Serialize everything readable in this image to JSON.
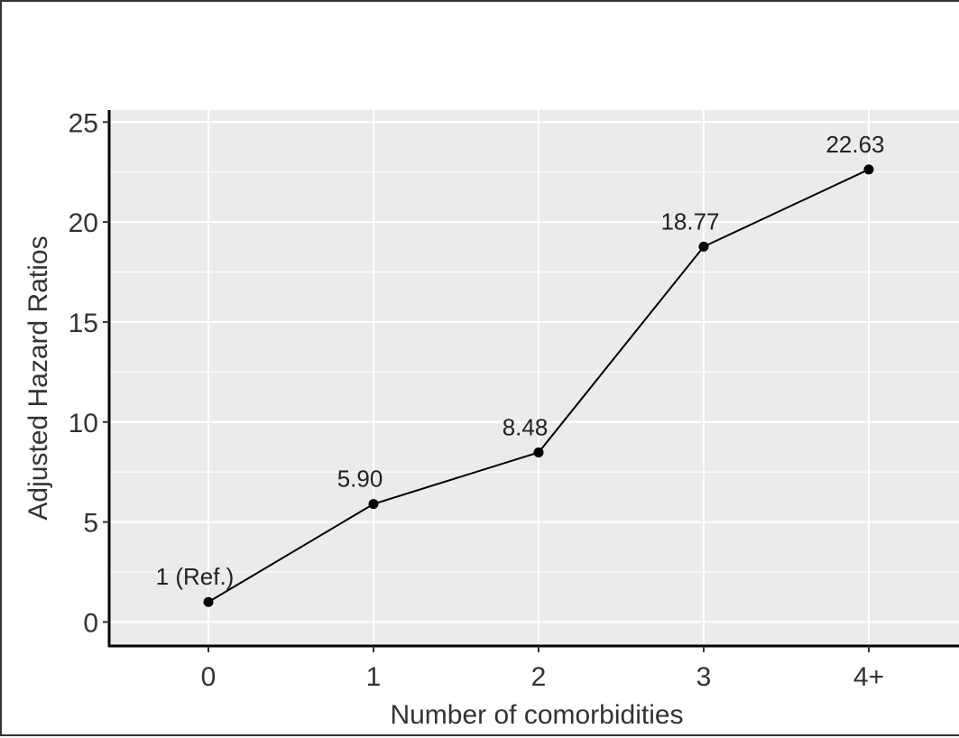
{
  "chart_data": {
    "type": "line",
    "categories": [
      "0",
      "1",
      "2",
      "3",
      "4+"
    ],
    "values": [
      1,
      5.9,
      8.48,
      18.77,
      22.63
    ],
    "point_labels": [
      "1 (Ref.)",
      "5.90",
      "8.48",
      "18.77",
      "22.63"
    ],
    "xlabel": "Number of comorbidities",
    "ylabel": "Adjusted Hazard Ratios",
    "ylim": [
      -1.2,
      25.6
    ],
    "yticks": [
      0,
      5,
      10,
      15,
      20,
      25
    ],
    "grid": true,
    "line_color": "#000000",
    "panel_color": "#ebebeb",
    "gridline_color": "#ffffff"
  }
}
